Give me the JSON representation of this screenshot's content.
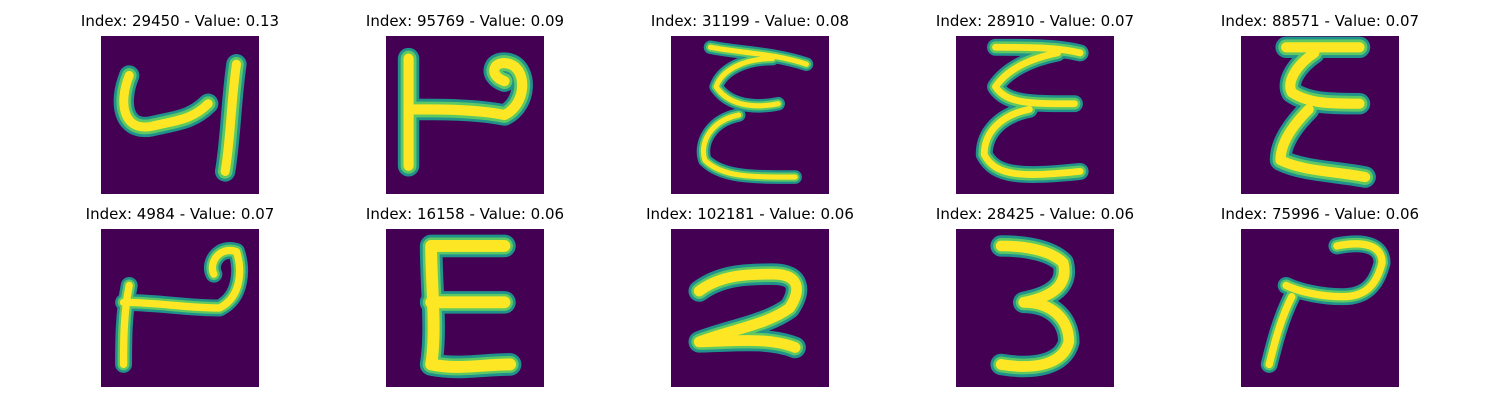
{
  "colors": {
    "background": "#440154",
    "stroke_core": "#fde725",
    "stroke_mid": "#5ec962",
    "stroke_edge": "#21918c"
  },
  "panels": [
    {
      "title": "Index: 29450 - Value: 0.13",
      "glyph": "glyph-4-rotated"
    },
    {
      "title": "Index: 95769 - Value: 0.09",
      "glyph": "glyph-2-rotated"
    },
    {
      "title": "Index: 31199 - Value: 0.08",
      "glyph": "glyph-3-rotated"
    },
    {
      "title": "Index: 28910 - Value: 0.07",
      "glyph": "glyph-3-rotated"
    },
    {
      "title": "Index: 88571 - Value: 0.07",
      "glyph": "glyph-3-rotated"
    },
    {
      "title": "Index: 4984 - Value: 0.07",
      "glyph": "glyph-2-rotated"
    },
    {
      "title": "Index: 16158 - Value: 0.06",
      "glyph": "glyph-e"
    },
    {
      "title": "Index: 102181 - Value: 0.06",
      "glyph": "glyph-2"
    },
    {
      "title": "Index: 28425 - Value: 0.06",
      "glyph": "glyph-3"
    },
    {
      "title": "Index: 75996 - Value: 0.06",
      "glyph": "glyph-2"
    }
  ]
}
